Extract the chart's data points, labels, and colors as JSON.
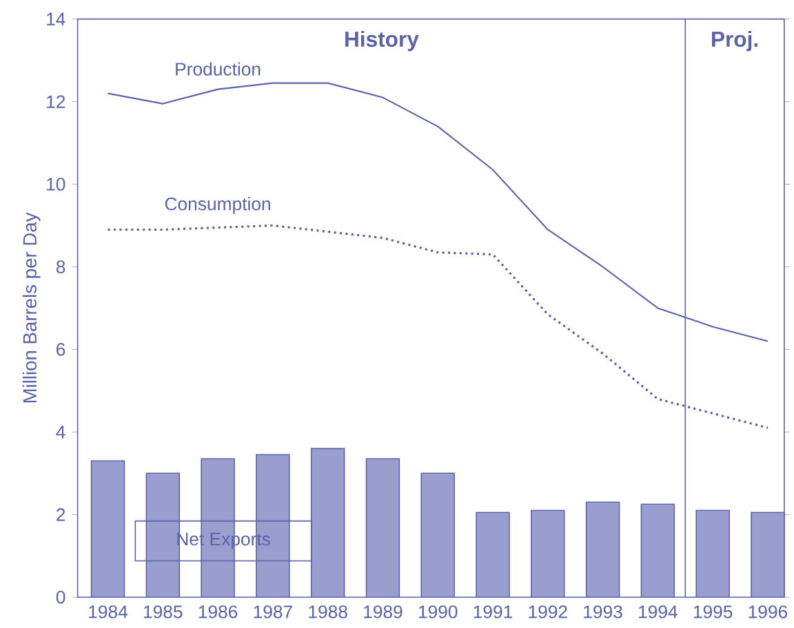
{
  "chart_data": {
    "type": "line",
    "ylabel": "Million Barrels per Day",
    "x": [
      1984,
      1985,
      1986,
      1987,
      1988,
      1989,
      1990,
      1991,
      1992,
      1993,
      1994,
      1995,
      1996
    ],
    "xlim": [
      1983.45,
      1996.3
    ],
    "xticks": [
      1984,
      1985,
      1986,
      1987,
      1988,
      1989,
      1990,
      1991,
      1992,
      1993,
      1994,
      1995,
      1996
    ],
    "ylim": [
      0,
      14
    ],
    "yticks": [
      0,
      2,
      4,
      6,
      8,
      10,
      12,
      14
    ],
    "series": [
      {
        "name": "Net Exports",
        "type": "bar",
        "color": "#9a9ecf",
        "values": [
          3.3,
          3.0,
          3.35,
          3.45,
          3.6,
          3.35,
          3.0,
          2.05,
          2.1,
          2.3,
          2.25,
          2.1,
          2.05
        ]
      },
      {
        "name": "Production",
        "line_style": "solid",
        "color": "#5a62a8",
        "values": [
          12.2,
          11.95,
          12.3,
          12.45,
          12.45,
          12.1,
          11.4,
          10.35,
          8.9,
          8.0,
          7.0,
          6.55,
          6.2
        ]
      },
      {
        "name": "Consumption",
        "line_style": "dotted",
        "color": "#5a62a8",
        "values": [
          8.9,
          8.9,
          8.95,
          9.0,
          8.85,
          8.7,
          8.35,
          8.3,
          6.85,
          5.9,
          4.8,
          4.45,
          4.1
        ]
      }
    ],
    "ref_lines": [
      {
        "axis": "x",
        "value": 1994.5,
        "color": "#5a62a8"
      }
    ],
    "annotations": [
      "History",
      "Proj."
    ],
    "legend": false,
    "grid": false,
    "marker": "none"
  }
}
